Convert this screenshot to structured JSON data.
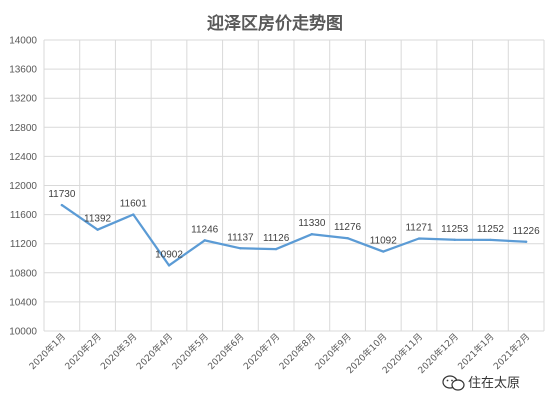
{
  "chart_data": {
    "type": "line",
    "title": "迎泽区房价走势图",
    "xlabel": "",
    "ylabel": "",
    "categories": [
      "2020年1月",
      "2020年2月",
      "2020年3月",
      "2020年4月",
      "2020年5月",
      "2020年6月",
      "2020年7月",
      "2020年8月",
      "2020年9月",
      "2020年10月",
      "2020年11月",
      "2020年12月",
      "2021年1月",
      "2021年2月"
    ],
    "series": [
      {
        "values": [
          11730,
          11392,
          11601,
          10902,
          11246,
          11137,
          11126,
          11330,
          11276,
          11092,
          11271,
          11253,
          11252,
          11226
        ]
      }
    ],
    "ylim": [
      10000,
      14000
    ],
    "yticks": [
      10000,
      10400,
      10800,
      11200,
      11600,
      12000,
      12400,
      12800,
      13200,
      13600,
      14000
    ],
    "grid": true,
    "legend": "none",
    "data_labels": true,
    "colors": {
      "line": "#5b9bd5",
      "grid": "#d9d9d9",
      "text": "#595959"
    }
  },
  "watermark": {
    "text": "住在太原",
    "icon": "wechat-icon"
  }
}
